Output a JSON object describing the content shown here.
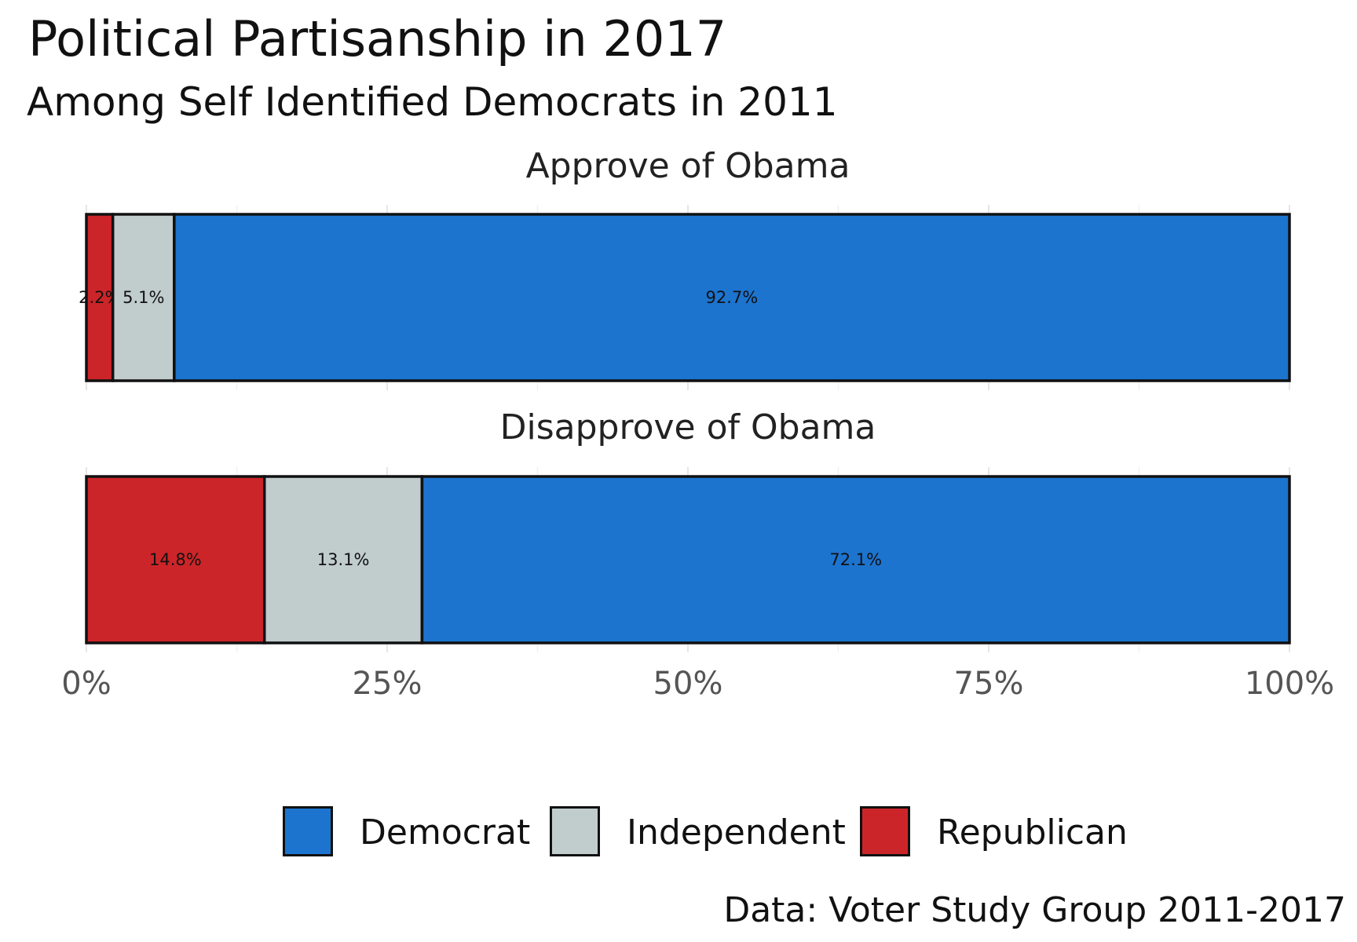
{
  "chart_data": {
    "type": "bar",
    "orientation": "horizontal",
    "stacked": true,
    "title": "Political Partisanship in 2017",
    "subtitle": "Among Self Identified Democrats in 2011",
    "caption": "Data: Voter Study Group 2011-2017",
    "xlim": [
      0,
      100
    ],
    "x_ticks": [
      "0%",
      "25%",
      "50%",
      "75%",
      "100%"
    ],
    "grid": true,
    "legend_position": "bottom",
    "legend": [
      "Democrat",
      "Independent",
      "Republican"
    ],
    "colors": {
      "Republican": "#cc2529",
      "Independent": "#c1cccc",
      "Democrat": "#1c74cf"
    },
    "panels": [
      {
        "title": "Approve of Obama",
        "segments": [
          {
            "party": "Republican",
            "value": 2.2,
            "label": "2.2%"
          },
          {
            "party": "Independent",
            "value": 5.1,
            "label": "5.1%"
          },
          {
            "party": "Democrat",
            "value": 92.7,
            "label": "92.7%"
          }
        ]
      },
      {
        "title": "Disapprove of Obama",
        "segments": [
          {
            "party": "Republican",
            "value": 14.8,
            "label": "14.8%"
          },
          {
            "party": "Independent",
            "value": 13.1,
            "label": "13.1%"
          },
          {
            "party": "Democrat",
            "value": 72.1,
            "label": "72.1%"
          }
        ]
      }
    ]
  }
}
